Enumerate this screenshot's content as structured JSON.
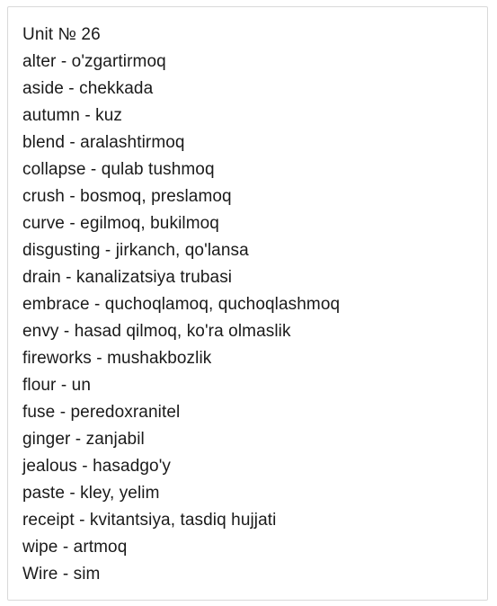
{
  "document": {
    "title": "Unit № 26",
    "entries": [
      "alter - o'zgartirmoq",
      "aside - chekkada",
      "autumn - kuz",
      "blend - aralashtirmoq",
      "collapse - qulab tushmoq",
      "crush - bosmoq, preslamoq",
      "curve - egilmoq, bukilmoq",
      "disgusting - jirkanch, qo'lansa",
      "drain - kanalizatsiya trubasi",
      "embrace - quchoqlamoq, quchoqlashmoq",
      "envy - hasad qilmoq, ko'ra olmaslik",
      "fireworks - mushakbozlik",
      "flour - un",
      "fuse - peredoxranitel",
      "ginger - zanjabil",
      "jealous - hasadgo'y",
      "paste - kley, yelim",
      "receipt - kvitantsiya, tasdiq hujjati",
      "wipe - artmoq",
      "Wire - sim"
    ]
  }
}
